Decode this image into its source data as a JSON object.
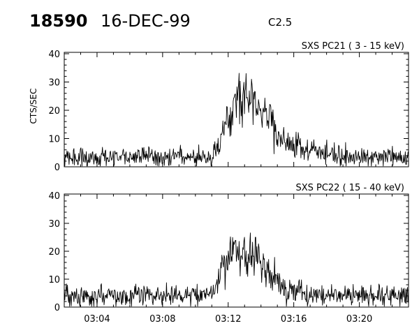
{
  "header": {
    "event_id": "18590",
    "date": "16-DEC-99",
    "goes_class": "C2.5"
  },
  "chart_data": [
    {
      "type": "line",
      "title": "SXS PC21  (  3 - 15 keV)",
      "ylabel": "CTS/SEC",
      "xlabel": "",
      "ylim": [
        0,
        40
      ],
      "yticks": [
        0,
        10,
        20,
        30,
        40
      ],
      "x_range": [
        "03:02",
        "03:23"
      ],
      "series": [
        {
          "x": [
            "03:02",
            "03:03",
            "03:04",
            "03:05",
            "03:06",
            "03:07",
            "03:08",
            "03:09",
            "03:10",
            "03:11",
            "03:11:30",
            "03:12",
            "03:12:30",
            "03:13",
            "03:13:30",
            "03:14",
            "03:14:30",
            "03:15",
            "03:15:30",
            "03:16",
            "03:17",
            "03:18",
            "03:19",
            "03:20",
            "03:21",
            "03:22",
            "03:23"
          ],
          "values": [
            3.5,
            3.5,
            3.5,
            3.5,
            3.5,
            3.5,
            3.5,
            3.5,
            3.5,
            4,
            9,
            17,
            23,
            26,
            25,
            21,
            16,
            12,
            9.5,
            8,
            6,
            4.5,
            3.5,
            3.5,
            3.5,
            3.5,
            3.5
          ],
          "noise": 2.8,
          "spikes": [
            [
              "03:13:05",
              33
            ],
            [
              "03:13:25",
              31
            ]
          ]
        }
      ]
    },
    {
      "type": "line",
      "title": "SXS PC22  ( 15 - 40 keV)",
      "ylabel": "",
      "xlabel": "",
      "ylim": [
        0,
        40
      ],
      "yticks": [
        0,
        10,
        20,
        30,
        40
      ],
      "x_range": [
        "03:02",
        "03:23"
      ],
      "x_ticks": [
        "03:04",
        "03:08",
        "03:12",
        "03:16",
        "03:20"
      ],
      "series": [
        {
          "x": [
            "03:02",
            "03:03",
            "03:04",
            "03:05",
            "03:06",
            "03:07",
            "03:08",
            "03:09",
            "03:10",
            "03:11",
            "03:11:30",
            "03:12",
            "03:12:30",
            "03:13",
            "03:13:30",
            "03:14",
            "03:14:30",
            "03:15",
            "03:15:30",
            "03:16",
            "03:17",
            "03:18",
            "03:19",
            "03:20",
            "03:21",
            "03:22",
            "03:23"
          ],
          "values": [
            4,
            4,
            4,
            4,
            4,
            4,
            4,
            4,
            4,
            4.5,
            12,
            19,
            20,
            20.5,
            19,
            16,
            13,
            9.5,
            7,
            5.5,
            4.5,
            4,
            4,
            4,
            4,
            4,
            4
          ],
          "noise": 2.8,
          "spikes": [
            [
              "03:13:00",
              25
            ],
            [
              "03:13:40",
              25
            ]
          ]
        }
      ]
    }
  ]
}
